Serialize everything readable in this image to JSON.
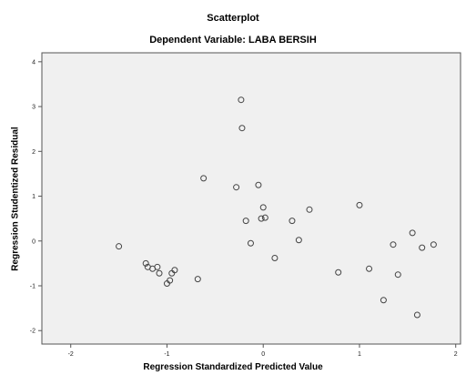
{
  "chart_data": {
    "type": "scatter",
    "title": "Scatterplot",
    "subtitle": "Dependent Variable: LABA BERSIH",
    "xlabel": "Regression Standardized Predicted Value",
    "ylabel": "Regression Studentized Residual",
    "xlim": [
      -2.3,
      2.05
    ],
    "ylim": [
      -2.3,
      4.2
    ],
    "xticks": [
      -2,
      -1,
      0,
      1,
      2
    ],
    "yticks": [
      -2,
      -1,
      0,
      1,
      2,
      3,
      4
    ],
    "grid": false,
    "colors": {
      "plot_bg": "#f0f0f0",
      "frame": "#555555",
      "marker": "#444444"
    },
    "points": [
      {
        "x": -1.5,
        "y": -0.12
      },
      {
        "x": -1.22,
        "y": -0.5
      },
      {
        "x": -1.2,
        "y": -0.58
      },
      {
        "x": -1.15,
        "y": -0.62
      },
      {
        "x": -1.1,
        "y": -0.58
      },
      {
        "x": -1.08,
        "y": -0.72
      },
      {
        "x": -1.0,
        "y": -0.95
      },
      {
        "x": -0.97,
        "y": -0.88
      },
      {
        "x": -0.95,
        "y": -0.72
      },
      {
        "x": -0.92,
        "y": -0.65
      },
      {
        "x": -0.68,
        "y": -0.85
      },
      {
        "x": -0.62,
        "y": 1.4
      },
      {
        "x": -0.28,
        "y": 1.2
      },
      {
        "x": -0.23,
        "y": 3.15
      },
      {
        "x": -0.22,
        "y": 2.52
      },
      {
        "x": -0.18,
        "y": 0.45
      },
      {
        "x": -0.13,
        "y": -0.05
      },
      {
        "x": -0.05,
        "y": 1.25
      },
      {
        "x": -0.02,
        "y": 0.5
      },
      {
        "x": 0.0,
        "y": 0.75
      },
      {
        "x": 0.02,
        "y": 0.52
      },
      {
        "x": 0.12,
        "y": -0.38
      },
      {
        "x": 0.3,
        "y": 0.45
      },
      {
        "x": 0.37,
        "y": 0.02
      },
      {
        "x": 0.48,
        "y": 0.7
      },
      {
        "x": 0.78,
        "y": -0.7
      },
      {
        "x": 1.0,
        "y": 0.8
      },
      {
        "x": 1.1,
        "y": -0.62
      },
      {
        "x": 1.25,
        "y": -1.32
      },
      {
        "x": 1.35,
        "y": -0.08
      },
      {
        "x": 1.4,
        "y": -0.75
      },
      {
        "x": 1.55,
        "y": 0.18
      },
      {
        "x": 1.6,
        "y": -1.65
      },
      {
        "x": 1.65,
        "y": -0.15
      },
      {
        "x": 1.77,
        "y": -0.08
      }
    ]
  }
}
